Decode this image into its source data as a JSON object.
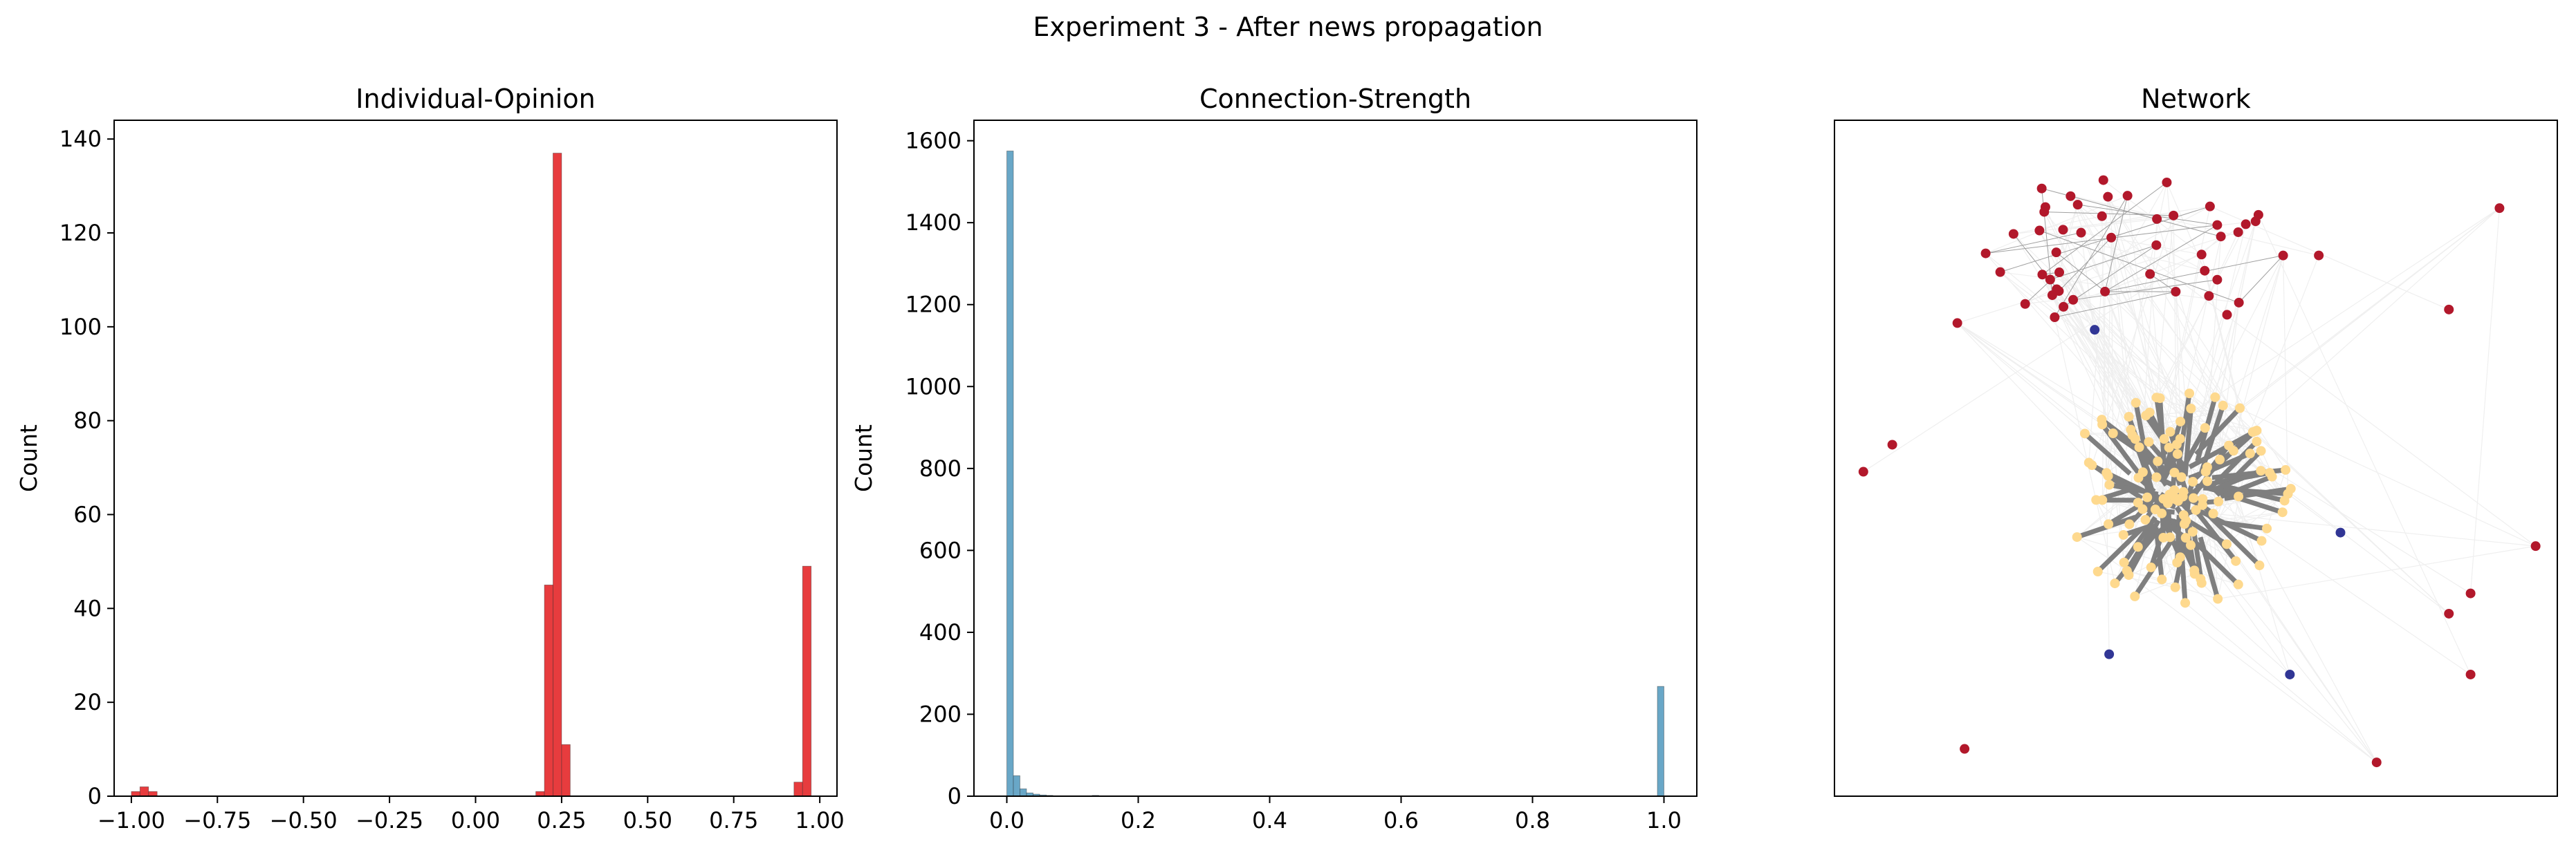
{
  "figure": {
    "suptitle": "Experiment 3 - After news propagation"
  },
  "chart_data": [
    {
      "type": "bar",
      "subtype": "histogram",
      "title": "Individual-Opinion",
      "xlabel": "",
      "ylabel": "Count",
      "xlim": [
        -1.05,
        1.05
      ],
      "ylim": [
        0,
        144
      ],
      "xticks": [
        -1.0,
        -0.75,
        -0.5,
        -0.25,
        0.0,
        0.25,
        0.5,
        0.75,
        1.0
      ],
      "xtick_labels": [
        "−1.00",
        "−0.75",
        "−0.50",
        "−0.25",
        "0.00",
        "0.25",
        "0.50",
        "0.75",
        "1.00"
      ],
      "yticks": [
        0,
        20,
        40,
        60,
        80,
        100,
        120,
        140
      ],
      "bin_width": 0.025,
      "bars": [
        {
          "x": -1.0,
          "count": 1
        },
        {
          "x": -0.975,
          "count": 2
        },
        {
          "x": -0.95,
          "count": 1
        },
        {
          "x": 0.175,
          "count": 1
        },
        {
          "x": 0.2,
          "count": 45
        },
        {
          "x": 0.225,
          "count": 137
        },
        {
          "x": 0.25,
          "count": 11
        },
        {
          "x": 0.925,
          "count": 3
        },
        {
          "x": 0.95,
          "count": 49
        }
      ],
      "color": "#e31a1c",
      "grid": false,
      "legend": "none"
    },
    {
      "type": "bar",
      "subtype": "histogram",
      "title": "Connection-Strength",
      "xlabel": "",
      "ylabel": "Count",
      "xlim": [
        -0.05,
        1.05
      ],
      "ylim": [
        0,
        1650
      ],
      "xticks": [
        0.0,
        0.2,
        0.4,
        0.6,
        0.8,
        1.0
      ],
      "xtick_labels": [
        "0.0",
        "0.2",
        "0.4",
        "0.6",
        "0.8",
        "1.0"
      ],
      "yticks": [
        0,
        200,
        400,
        600,
        800,
        1000,
        1200,
        1400,
        1600
      ],
      "bin_width": 0.01,
      "bars": [
        {
          "x": 0.0,
          "count": 1575
        },
        {
          "x": 0.01,
          "count": 50
        },
        {
          "x": 0.02,
          "count": 18
        },
        {
          "x": 0.03,
          "count": 8
        },
        {
          "x": 0.04,
          "count": 5
        },
        {
          "x": 0.05,
          "count": 3
        },
        {
          "x": 0.06,
          "count": 2
        },
        {
          "x": 0.08,
          "count": 1
        },
        {
          "x": 0.13,
          "count": 2
        },
        {
          "x": 0.99,
          "count": 268
        }
      ],
      "color": "#4f98bd",
      "grid": false,
      "legend": "none"
    },
    {
      "type": "scatter",
      "subtype": "network-graph",
      "title": "Network",
      "xlabel": "",
      "ylabel": "",
      "axes_ticks": false,
      "node_colors": {
        "red": "#b2182b",
        "yellow": "#fed98e",
        "blue": "#313695"
      },
      "edge_colors": {
        "strong": "#7f7f7f",
        "weak": "#efefef"
      }
    }
  ]
}
